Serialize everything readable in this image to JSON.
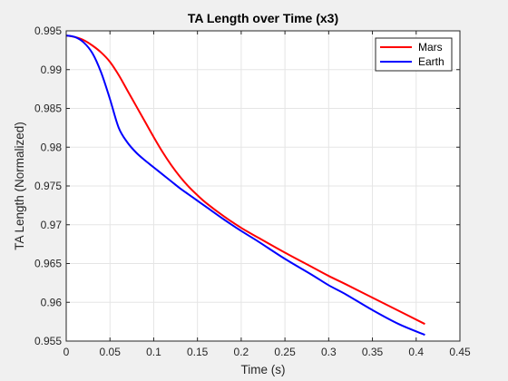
{
  "chart_data": {
    "type": "line",
    "title": "TA Length over Time (x3)",
    "xlabel": "Time (s)",
    "ylabel": "TA Length (Normalized)",
    "xlim": [
      0,
      0.45
    ],
    "ylim": [
      0.955,
      0.995
    ],
    "xticks": [
      "0",
      "0.05",
      "0.1",
      "0.15",
      "0.2",
      "0.25",
      "0.3",
      "0.35",
      "0.4",
      "0.45"
    ],
    "yticks": [
      "0.955",
      "0.96",
      "0.965",
      "0.97",
      "0.975",
      "0.98",
      "0.985",
      "0.99",
      "0.995"
    ],
    "grid": true,
    "legend_position": "top-right",
    "series": [
      {
        "name": "Mars",
        "color": "#ff0000",
        "x": [
          0,
          0.01,
          0.02,
          0.03,
          0.04,
          0.05,
          0.06,
          0.07,
          0.08,
          0.09,
          0.1,
          0.11,
          0.12,
          0.13,
          0.14,
          0.15,
          0.16,
          0.18,
          0.2,
          0.22,
          0.25,
          0.28,
          0.3,
          0.32,
          0.35,
          0.38,
          0.41
        ],
        "y": [
          0.9944,
          0.9942,
          0.9938,
          0.9931,
          0.9922,
          0.991,
          0.9893,
          0.9873,
          0.9853,
          0.9833,
          0.9813,
          0.9794,
          0.9777,
          0.9762,
          0.9749,
          0.9738,
          0.9728,
          0.9711,
          0.9696,
          0.9683,
          0.9664,
          0.9646,
          0.9634,
          0.9623,
          0.9606,
          0.9589,
          0.9572
        ]
      },
      {
        "name": "Earth",
        "color": "#0000ff",
        "x": [
          0,
          0.01,
          0.02,
          0.03,
          0.04,
          0.05,
          0.06,
          0.07,
          0.08,
          0.09,
          0.1,
          0.11,
          0.12,
          0.13,
          0.14,
          0.15,
          0.16,
          0.18,
          0.2,
          0.22,
          0.25,
          0.28,
          0.3,
          0.32,
          0.35,
          0.38,
          0.41
        ],
        "y": [
          0.9944,
          0.9942,
          0.9935,
          0.9921,
          0.9896,
          0.9862,
          0.9825,
          0.9806,
          0.9793,
          0.9783,
          0.9774,
          0.9765,
          0.9756,
          0.9747,
          0.9739,
          0.9731,
          0.9723,
          0.9707,
          0.9692,
          0.9678,
          0.9656,
          0.9636,
          0.9622,
          0.961,
          0.959,
          0.9572,
          0.9558
        ]
      }
    ]
  }
}
